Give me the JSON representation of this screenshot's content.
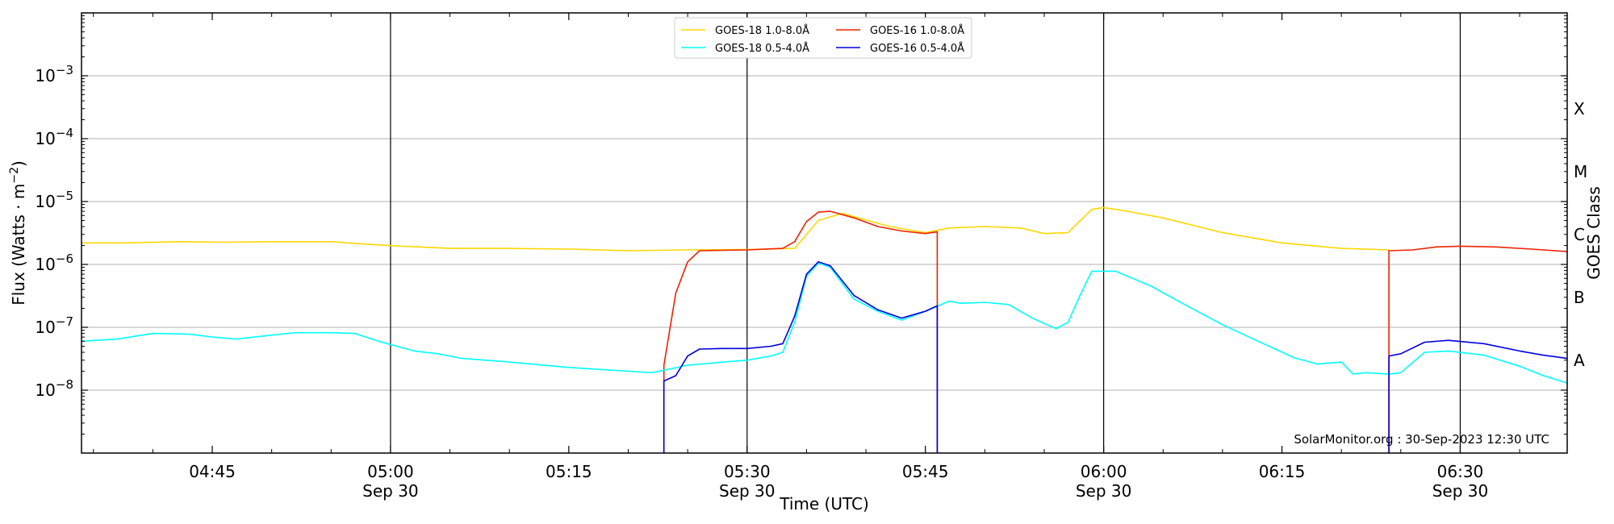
{
  "chart_data": {
    "type": "line",
    "xlabel": "Time (UTC)",
    "ylabel_main": "Flux (Watts · m",
    "ylabel_sup": "−2",
    "ylabel_close": ")",
    "ylabel_right": "GOES Class",
    "credit": "SolarMonitor.org : 30-Sep-2023 12:30 UTC",
    "y_scale": "log",
    "ylim": [
      1e-09,
      0.01
    ],
    "xlim": [
      "04:34",
      "06:39"
    ],
    "grid": "horizontal at decades",
    "legend_placement": "top-center",
    "x_ticks": [
      {
        "t": "04:45",
        "time": "04:45",
        "date": ""
      },
      {
        "t": "05:00",
        "time": "05:00",
        "date": "Sep 30"
      },
      {
        "t": "05:15",
        "time": "05:15",
        "date": ""
      },
      {
        "t": "05:30",
        "time": "05:30",
        "date": "Sep 30"
      },
      {
        "t": "05:45",
        "time": "05:45",
        "date": ""
      },
      {
        "t": "06:00",
        "time": "06:00",
        "date": "Sep 30"
      },
      {
        "t": "06:15",
        "time": "06:15",
        "date": ""
      },
      {
        "t": "06:30",
        "time": "06:30",
        "date": "Sep 30"
      }
    ],
    "vertical_lines": [
      "05:00",
      "05:30",
      "06:00",
      "06:30"
    ],
    "y_ticks": [
      {
        "value": 1e-08,
        "base": "10",
        "exp": "−8"
      },
      {
        "value": 1e-07,
        "base": "10",
        "exp": "−7"
      },
      {
        "value": 1e-06,
        "base": "10",
        "exp": "−6"
      },
      {
        "value": 1e-05,
        "base": "10",
        "exp": "−5"
      },
      {
        "value": 0.0001,
        "base": "10",
        "exp": "−4"
      },
      {
        "value": 0.001,
        "base": "10",
        "exp": "−3"
      }
    ],
    "goes_classes": [
      {
        "label": "A",
        "value": 3e-08
      },
      {
        "label": "B",
        "value": 3e-07
      },
      {
        "label": "C",
        "value": 3e-06
      },
      {
        "label": "M",
        "value": 3e-05
      },
      {
        "label": "X",
        "value": 0.0003
      }
    ],
    "series": [
      {
        "name": "GOES-18 1.0-8.0Å",
        "color": "#FFD700",
        "points": [
          [
            "04:34",
            2.2e-06
          ],
          [
            "04:38",
            2.2e-06
          ],
          [
            "04:42",
            2.3e-06
          ],
          [
            "04:46",
            2.25e-06
          ],
          [
            "04:50",
            2.3e-06
          ],
          [
            "04:55",
            2.3e-06
          ],
          [
            "04:58",
            2.1e-06
          ],
          [
            "05:01",
            1.95e-06
          ],
          [
            "05:05",
            1.8e-06
          ],
          [
            "05:10",
            1.8e-06
          ],
          [
            "05:15",
            1.75e-06
          ],
          [
            "05:20",
            1.65e-06
          ],
          [
            "05:25",
            1.7e-06
          ],
          [
            "05:30",
            1.72e-06
          ],
          [
            "05:34",
            1.8e-06
          ],
          [
            "05:36",
            5e-06
          ],
          [
            "05:38",
            6.5e-06
          ],
          [
            "05:42",
            4e-06
          ],
          [
            "05:45",
            3.2e-06
          ],
          [
            "05:47",
            3.8e-06
          ],
          [
            "05:50",
            4e-06
          ],
          [
            "05:53",
            3.8e-06
          ],
          [
            "05:55",
            3.1e-06
          ],
          [
            "05:57",
            3.2e-06
          ],
          [
            "05:59",
            7.5e-06
          ],
          [
            "06:00",
            8e-06
          ],
          [
            "06:02",
            7e-06
          ],
          [
            "06:05",
            5.5e-06
          ],
          [
            "06:10",
            3.2e-06
          ],
          [
            "06:15",
            2.2e-06
          ],
          [
            "06:20",
            1.8e-06
          ],
          [
            "06:24",
            1.7e-06
          ]
        ]
      },
      {
        "name": "GOES-16 1.0-8.0Å",
        "color": "#EE2200",
        "points": [
          [
            "05:23",
            1e-09
          ],
          [
            "05:23",
            2.5e-08
          ],
          [
            "05:24",
            3.5e-07
          ],
          [
            "05:25",
            1.1e-06
          ],
          [
            "05:26",
            1.65e-06
          ],
          [
            "05:30",
            1.7e-06
          ],
          [
            "05:33",
            1.8e-06
          ],
          [
            "05:34",
            2.3e-06
          ],
          [
            "05:35",
            4.8e-06
          ],
          [
            "05:36",
            6.8e-06
          ],
          [
            "05:37",
            7e-06
          ],
          [
            "05:39",
            5.5e-06
          ],
          [
            "05:41",
            4e-06
          ],
          [
            "05:43",
            3.4e-06
          ],
          [
            "05:45",
            3.1e-06
          ],
          [
            "05:46",
            3.3e-06
          ],
          [
            "05:46",
            1e-09
          ]
        ]
      },
      {
        "name": "GOES-16 1.0-8.0Å (late)",
        "color": "#EE2200",
        "points": [
          [
            "06:24",
            1e-09
          ],
          [
            "06:24",
            1.65e-06
          ],
          [
            "06:26",
            1.7e-06
          ],
          [
            "06:28",
            1.9e-06
          ],
          [
            "06:30",
            1.95e-06
          ],
          [
            "06:33",
            1.9e-06
          ],
          [
            "06:36",
            1.75e-06
          ],
          [
            "06:39",
            1.6e-06
          ]
        ]
      },
      {
        "name": "GOES-18 0.5-4.0Å",
        "color": "#00FFFF",
        "points": [
          [
            "04:34",
            6e-08
          ],
          [
            "04:37",
            6.5e-08
          ],
          [
            "04:40",
            8e-08
          ],
          [
            "04:43",
            7.8e-08
          ],
          [
            "04:45",
            7e-08
          ],
          [
            "04:47",
            6.5e-08
          ],
          [
            "04:50",
            7.5e-08
          ],
          [
            "04:52",
            8.2e-08
          ],
          [
            "04:55",
            8.2e-08
          ],
          [
            "04:57",
            8e-08
          ],
          [
            "04:59",
            6e-08
          ],
          [
            "05:02",
            4.2e-08
          ],
          [
            "05:04",
            3.8e-08
          ],
          [
            "05:06",
            3.2e-08
          ],
          [
            "05:10",
            2.8e-08
          ],
          [
            "05:15",
            2.3e-08
          ],
          [
            "05:20",
            2e-08
          ],
          [
            "05:22",
            1.9e-08
          ],
          [
            "05:25",
            2.5e-08
          ],
          [
            "05:28",
            2.8e-08
          ],
          [
            "05:30",
            3e-08
          ],
          [
            "05:32",
            3.5e-08
          ],
          [
            "05:33",
            4e-08
          ],
          [
            "05:34",
            1.2e-07
          ],
          [
            "05:35",
            6.5e-07
          ],
          [
            "05:36",
            1.05e-06
          ],
          [
            "05:37",
            9e-07
          ],
          [
            "05:39",
            2.8e-07
          ],
          [
            "05:41",
            1.8e-07
          ],
          [
            "05:43",
            1.3e-07
          ],
          [
            "05:45",
            1.8e-07
          ],
          [
            "05:47",
            2.6e-07
          ],
          [
            "05:48",
            2.4e-07
          ],
          [
            "05:50",
            2.5e-07
          ],
          [
            "05:52",
            2.3e-07
          ],
          [
            "05:54",
            1.4e-07
          ],
          [
            "05:56",
            9.5e-08
          ],
          [
            "05:57",
            1.2e-07
          ],
          [
            "05:58",
            3.2e-07
          ],
          [
            "05:59",
            7.8e-07
          ],
          [
            "06:01",
            7.8e-07
          ],
          [
            "06:04",
            4.5e-07
          ],
          [
            "06:07",
            2.2e-07
          ],
          [
            "06:10",
            1.1e-07
          ],
          [
            "06:13",
            6e-08
          ],
          [
            "06:16",
            3.3e-08
          ],
          [
            "06:18",
            2.6e-08
          ],
          [
            "06:20",
            2.8e-08
          ],
          [
            "06:21",
            1.8e-08
          ],
          [
            "06:22",
            1.9e-08
          ],
          [
            "06:24",
            1.8e-08
          ],
          [
            "06:25",
            1.9e-08
          ],
          [
            "06:27",
            4e-08
          ],
          [
            "06:29",
            4.2e-08
          ],
          [
            "06:32",
            3.6e-08
          ],
          [
            "06:35",
            2.4e-08
          ],
          [
            "06:37",
            1.7e-08
          ],
          [
            "06:39",
            1.3e-08
          ]
        ]
      },
      {
        "name": "GOES-16 0.5-4.0Å",
        "color": "#0000DD",
        "points": [
          [
            "05:23",
            1e-09
          ],
          [
            "05:23",
            1.4e-08
          ],
          [
            "05:24",
            1.7e-08
          ],
          [
            "05:25",
            3.5e-08
          ],
          [
            "05:26",
            4.5e-08
          ],
          [
            "05:28",
            4.6e-08
          ],
          [
            "05:30",
            4.6e-08
          ],
          [
            "05:32",
            5e-08
          ],
          [
            "05:33",
            5.5e-08
          ],
          [
            "05:34",
            1.5e-07
          ],
          [
            "05:35",
            7e-07
          ],
          [
            "05:36",
            1.1e-06
          ],
          [
            "05:37",
            9.5e-07
          ],
          [
            "05:39",
            3.2e-07
          ],
          [
            "05:41",
            1.9e-07
          ],
          [
            "05:43",
            1.4e-07
          ],
          [
            "05:45",
            1.8e-07
          ],
          [
            "05:46",
            2.2e-07
          ],
          [
            "05:46",
            1e-09
          ]
        ]
      },
      {
        "name": "GOES-16 0.5-4.0Å (late)",
        "color": "#0000DD",
        "points": [
          [
            "06:24",
            1e-09
          ],
          [
            "06:24",
            3.5e-08
          ],
          [
            "06:25",
            3.8e-08
          ],
          [
            "06:27",
            5.8e-08
          ],
          [
            "06:29",
            6.2e-08
          ],
          [
            "06:32",
            5.5e-08
          ],
          [
            "06:35",
            4.2e-08
          ],
          [
            "06:37",
            3.6e-08
          ],
          [
            "06:39",
            3.2e-08
          ]
        ]
      }
    ],
    "legend": [
      {
        "label": "GOES-18 1.0-8.0Å",
        "color": "#FFD700"
      },
      {
        "label": "GOES-18 0.5-4.0Å",
        "color": "#00FFFF"
      },
      {
        "label": "GOES-16 1.0-8.0Å",
        "color": "#EE2200"
      },
      {
        "label": "GOES-16 0.5-4.0Å",
        "color": "#0000DD"
      }
    ]
  }
}
